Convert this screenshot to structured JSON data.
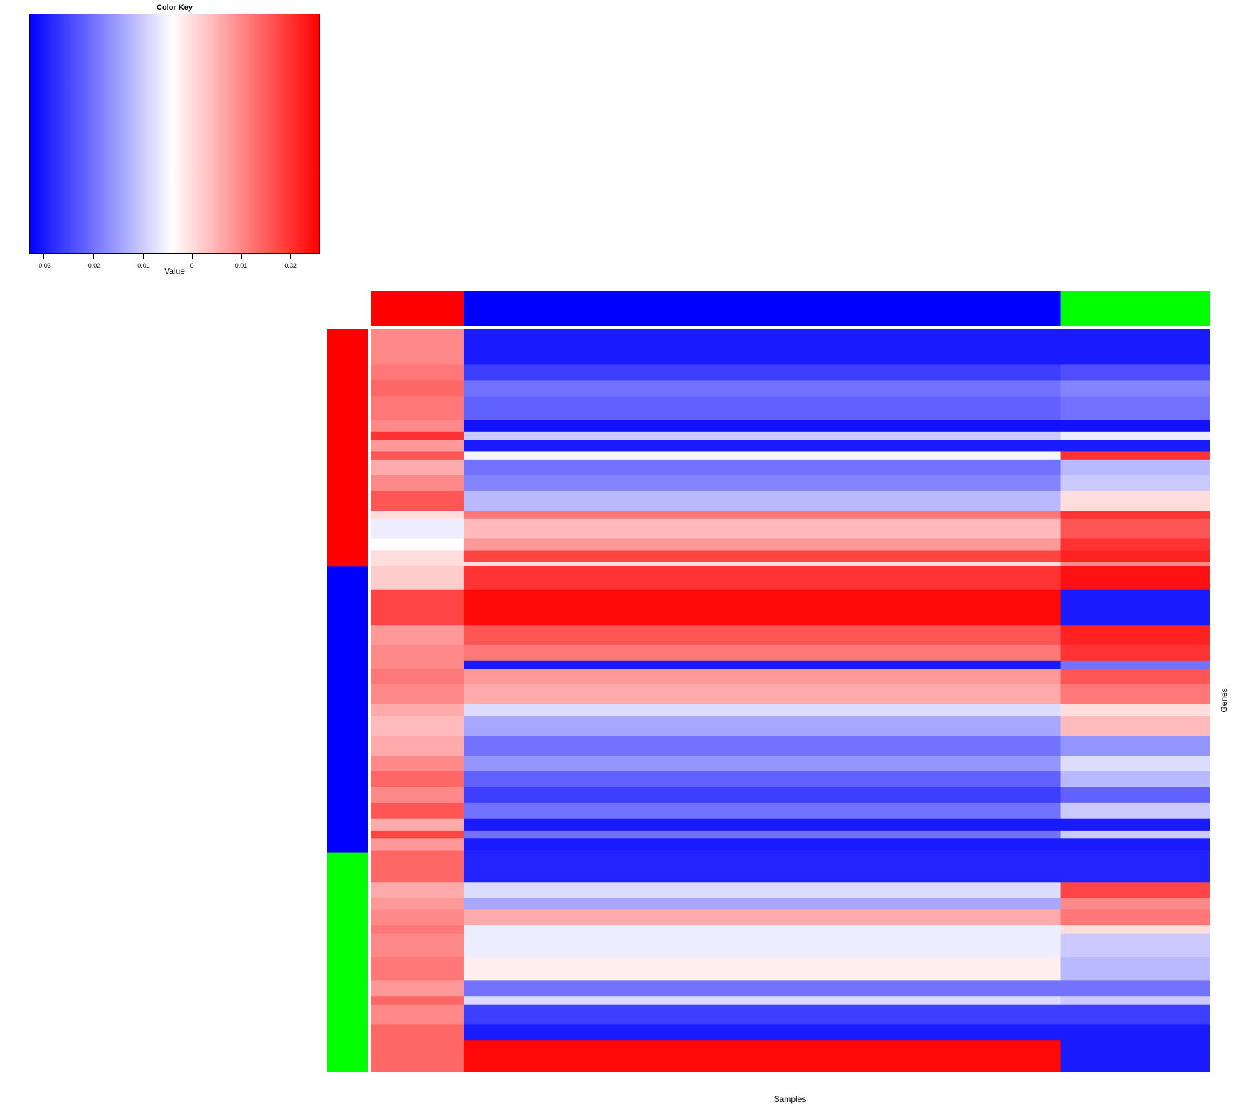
{
  "chart_data": {
    "type": "heatmap",
    "color_key": {
      "title": "Color Key",
      "xlabel": "Value",
      "range": [
        -0.033,
        0.026
      ],
      "center": -0.004,
      "low_color": "#0000ff",
      "mid_color": "#ffffff",
      "high_color": "#ff0000",
      "ticks": [
        -0.03,
        -0.02,
        -0.01,
        0,
        0.01,
        0.02
      ],
      "tick_labels": [
        "-0.03",
        "-0.02",
        "-0.01",
        "0",
        "0.01",
        "0.02"
      ]
    },
    "xlabel": "Samples",
    "ylabel": "Genes",
    "column_groups": [
      {
        "color": "#ff0000",
        "fraction": 0.111
      },
      {
        "color": "#0000ff",
        "fraction": 0.711
      },
      {
        "color": "#00ff00",
        "fraction": 0.178
      }
    ],
    "row_groups": [
      {
        "color": "#ff0000",
        "fraction": 0.32
      },
      {
        "color": "#0000ff",
        "fraction": 0.385
      },
      {
        "color": "#00ff00",
        "fraction": 0.295
      }
    ],
    "row_bands": [
      {
        "weight": 9,
        "values": [
          0.01,
          -0.03,
          -0.03
        ]
      },
      {
        "weight": 4,
        "values": [
          0.012,
          -0.026,
          -0.024
        ]
      },
      {
        "weight": 4,
        "values": [
          0.014,
          -0.02,
          -0.018
        ]
      },
      {
        "weight": 6,
        "values": [
          0.012,
          -0.022,
          -0.02
        ]
      },
      {
        "weight": 3,
        "values": [
          0.01,
          -0.031,
          -0.031
        ]
      },
      {
        "weight": 2,
        "values": [
          0.02,
          -0.01,
          -0.006
        ]
      },
      {
        "weight": 3,
        "values": [
          0.008,
          -0.03,
          -0.03
        ]
      },
      {
        "weight": 2,
        "values": [
          0.016,
          -0.005,
          0.02
        ]
      },
      {
        "weight": 4,
        "values": [
          0.006,
          -0.02,
          -0.012
        ]
      },
      {
        "weight": 4,
        "values": [
          0.01,
          -0.018,
          -0.01
        ]
      },
      {
        "weight": 5,
        "values": [
          0.016,
          -0.012,
          0.0
        ]
      },
      {
        "weight": 2,
        "values": [
          0.0,
          0.012,
          0.02
        ]
      },
      {
        "weight": 5,
        "values": [
          -0.006,
          0.004,
          0.016
        ]
      },
      {
        "weight": 3,
        "values": [
          -0.004,
          0.008,
          0.02
        ]
      },
      {
        "weight": 3,
        "values": [
          0.0,
          0.018,
          0.022
        ]
      },
      {
        "weight": 1,
        "values": [
          0.0,
          0.0,
          0.01
        ]
      },
      {
        "weight": 6,
        "values": [
          0.002,
          0.02,
          0.024
        ]
      },
      {
        "weight": 9,
        "values": [
          0.018,
          0.025,
          -0.03
        ]
      },
      {
        "weight": 5,
        "values": [
          0.008,
          0.016,
          0.022
        ]
      },
      {
        "weight": 4,
        "values": [
          0.01,
          0.012,
          0.02
        ]
      },
      {
        "weight": 2,
        "values": [
          0.01,
          -0.03,
          -0.02
        ]
      },
      {
        "weight": 4,
        "values": [
          0.012,
          0.008,
          0.016
        ]
      },
      {
        "weight": 5,
        "values": [
          0.01,
          0.006,
          0.012
        ]
      },
      {
        "weight": 3,
        "values": [
          0.006,
          -0.008,
          0.0
        ]
      },
      {
        "weight": 5,
        "values": [
          0.004,
          -0.014,
          0.004
        ]
      },
      {
        "weight": 5,
        "values": [
          0.006,
          -0.02,
          -0.016
        ]
      },
      {
        "weight": 4,
        "values": [
          0.01,
          -0.016,
          -0.008
        ]
      },
      {
        "weight": 4,
        "values": [
          0.014,
          -0.022,
          -0.012
        ]
      },
      {
        "weight": 4,
        "values": [
          0.01,
          -0.026,
          -0.022
        ]
      },
      {
        "weight": 4,
        "values": [
          0.016,
          -0.02,
          -0.01
        ]
      },
      {
        "weight": 3,
        "values": [
          0.006,
          -0.03,
          -0.03
        ]
      },
      {
        "weight": 2,
        "values": [
          0.018,
          -0.02,
          -0.01
        ]
      },
      {
        "weight": 3,
        "values": [
          0.008,
          -0.03,
          -0.03
        ]
      },
      {
        "weight": 8,
        "values": [
          0.014,
          -0.029,
          -0.029
        ]
      },
      {
        "weight": 4,
        "values": [
          0.006,
          -0.008,
          0.018
        ]
      },
      {
        "weight": 3,
        "values": [
          0.008,
          -0.014,
          0.01
        ]
      },
      {
        "weight": 4,
        "values": [
          0.01,
          0.006,
          0.012
        ]
      },
      {
        "weight": 2,
        "values": [
          0.012,
          -0.006,
          0.0
        ]
      },
      {
        "weight": 6,
        "values": [
          0.01,
          -0.006,
          -0.01
        ]
      },
      {
        "weight": 6,
        "values": [
          0.012,
          -0.002,
          -0.012
        ]
      },
      {
        "weight": 4,
        "values": [
          0.008,
          -0.02,
          -0.02
        ]
      },
      {
        "weight": 2,
        "values": [
          0.014,
          -0.008,
          -0.01
        ]
      },
      {
        "weight": 5,
        "values": [
          0.01,
          -0.026,
          -0.026
        ]
      },
      {
        "weight": 4,
        "values": [
          0.014,
          -0.03,
          -0.03
        ]
      },
      {
        "weight": 8,
        "values": [
          0.014,
          0.025,
          -0.03
        ]
      }
    ]
  }
}
